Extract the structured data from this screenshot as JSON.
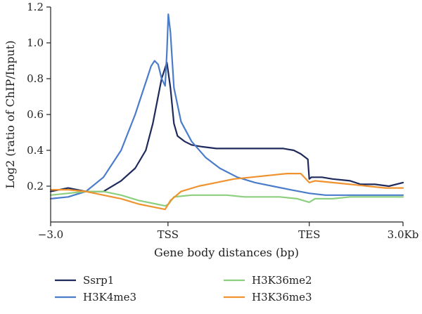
{
  "chart_data": {
    "type": "line",
    "title": "",
    "xlabel": "Gene body distances (bp)",
    "ylabel": "Log2 (ratio of ChIP/Input)",
    "xlim": [
      0,
      100
    ],
    "ylim": [
      0,
      1.2
    ],
    "x_ticks": [
      {
        "value": 0,
        "label": "−3.0"
      },
      {
        "value": 33.3,
        "label": "TSS"
      },
      {
        "value": 73.4,
        "label": "TES"
      },
      {
        "value": 100,
        "label": "3.0Kb"
      }
    ],
    "y_ticks": [
      {
        "value": 0.2,
        "label": "0.2"
      },
      {
        "value": 0.4,
        "label": "0.4"
      },
      {
        "value": 0.6,
        "label": "0.6"
      },
      {
        "value": 0.8,
        "label": "0.8"
      },
      {
        "value": 1.0,
        "label": "1.0"
      },
      {
        "value": 1.2,
        "label": "1.2"
      }
    ],
    "grid": false,
    "legend_position": "bottom",
    "series": [
      {
        "name": "Ssrp1",
        "color": "#1f2a5c",
        "points": [
          [
            0,
            0.17
          ],
          [
            5,
            0.19
          ],
          [
            10,
            0.17
          ],
          [
            15,
            0.17
          ],
          [
            20,
            0.23
          ],
          [
            24,
            0.3
          ],
          [
            27,
            0.4
          ],
          [
            29,
            0.55
          ],
          [
            30.5,
            0.7
          ],
          [
            31.5,
            0.8
          ],
          [
            32.5,
            0.86
          ],
          [
            33,
            0.89
          ],
          [
            34,
            0.75
          ],
          [
            35,
            0.55
          ],
          [
            36,
            0.48
          ],
          [
            38,
            0.45
          ],
          [
            40,
            0.43
          ],
          [
            43,
            0.42
          ],
          [
            47,
            0.41
          ],
          [
            52,
            0.41
          ],
          [
            57,
            0.41
          ],
          [
            62,
            0.41
          ],
          [
            66,
            0.41
          ],
          [
            69,
            0.4
          ],
          [
            71,
            0.38
          ],
          [
            73,
            0.35
          ],
          [
            73.4,
            0.24
          ],
          [
            74,
            0.25
          ],
          [
            77,
            0.25
          ],
          [
            80,
            0.24
          ],
          [
            85,
            0.23
          ],
          [
            88,
            0.21
          ],
          [
            92,
            0.21
          ],
          [
            96,
            0.2
          ],
          [
            100,
            0.22
          ]
        ]
      },
      {
        "name": "H3K4me3",
        "color": "#4a7cc9",
        "points": [
          [
            0,
            0.13
          ],
          [
            5,
            0.14
          ],
          [
            10,
            0.17
          ],
          [
            15,
            0.25
          ],
          [
            20,
            0.4
          ],
          [
            24,
            0.6
          ],
          [
            27,
            0.78
          ],
          [
            28.5,
            0.87
          ],
          [
            29.5,
            0.9
          ],
          [
            30.5,
            0.88
          ],
          [
            31.5,
            0.8
          ],
          [
            32.5,
            0.76
          ],
          [
            33,
            0.95
          ],
          [
            33.4,
            1.16
          ],
          [
            34,
            1.06
          ],
          [
            35,
            0.75
          ],
          [
            37,
            0.56
          ],
          [
            40,
            0.45
          ],
          [
            44,
            0.36
          ],
          [
            48,
            0.3
          ],
          [
            53,
            0.25
          ],
          [
            58,
            0.22
          ],
          [
            63,
            0.2
          ],
          [
            68,
            0.18
          ],
          [
            73.4,
            0.16
          ],
          [
            78,
            0.15
          ],
          [
            85,
            0.15
          ],
          [
            92,
            0.15
          ],
          [
            100,
            0.15
          ]
        ]
      },
      {
        "name": "H3K36me2",
        "color": "#8ccf7e",
        "points": [
          [
            0,
            0.15
          ],
          [
            5,
            0.16
          ],
          [
            10,
            0.17
          ],
          [
            15,
            0.17
          ],
          [
            20,
            0.15
          ],
          [
            25,
            0.12
          ],
          [
            30,
            0.1
          ],
          [
            32.5,
            0.09
          ],
          [
            33.5,
            0.1
          ],
          [
            35,
            0.14
          ],
          [
            40,
            0.15
          ],
          [
            45,
            0.15
          ],
          [
            50,
            0.15
          ],
          [
            55,
            0.14
          ],
          [
            60,
            0.14
          ],
          [
            65,
            0.14
          ],
          [
            70,
            0.13
          ],
          [
            73.4,
            0.11
          ],
          [
            75,
            0.13
          ],
          [
            80,
            0.13
          ],
          [
            85,
            0.14
          ],
          [
            90,
            0.14
          ],
          [
            95,
            0.14
          ],
          [
            100,
            0.14
          ]
        ]
      },
      {
        "name": "H3K36me3",
        "color": "#f0922e",
        "points": [
          [
            0,
            0.18
          ],
          [
            5,
            0.18
          ],
          [
            10,
            0.17
          ],
          [
            15,
            0.15
          ],
          [
            20,
            0.13
          ],
          [
            25,
            0.1
          ],
          [
            30,
            0.08
          ],
          [
            32.5,
            0.07
          ],
          [
            34,
            0.12
          ],
          [
            37,
            0.17
          ],
          [
            42,
            0.2
          ],
          [
            47,
            0.22
          ],
          [
            52,
            0.24
          ],
          [
            57,
            0.25
          ],
          [
            62,
            0.26
          ],
          [
            67,
            0.27
          ],
          [
            71,
            0.27
          ],
          [
            73.4,
            0.22
          ],
          [
            75,
            0.23
          ],
          [
            80,
            0.22
          ],
          [
            85,
            0.21
          ],
          [
            90,
            0.2
          ],
          [
            95,
            0.19
          ],
          [
            100,
            0.19
          ]
        ]
      }
    ]
  }
}
